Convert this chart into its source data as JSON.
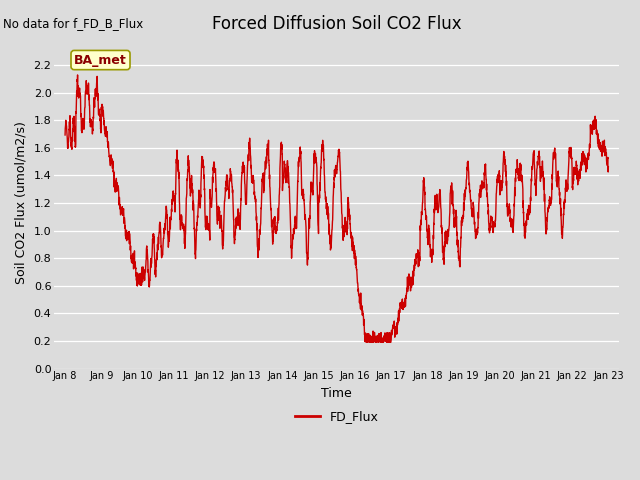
{
  "title": "Forced Diffusion Soil CO2 Flux",
  "no_data_label": "No data for f_FD_B_Flux",
  "xlabel": "Time",
  "ylabel": "Soil CO2 Flux (umol/m2/s)",
  "ylim": [
    0.0,
    2.4
  ],
  "yticks": [
    0.0,
    0.2,
    0.4,
    0.6,
    0.8,
    1.0,
    1.2,
    1.4,
    1.6,
    1.8,
    2.0,
    2.2
  ],
  "line_color": "#cc0000",
  "line_width": 1.0,
  "background_color": "#dcdcdc",
  "plot_bg_color": "#dcdcdc",
  "legend_label": "FD_Flux",
  "annotation_label": "BA_met",
  "xtick_labels": [
    "Jan 8",
    "Jan 9",
    "Jan 10",
    "Jan 11",
    "Jan 12",
    "Jan 13",
    "Jan 14",
    "Jan 15",
    "Jan 16",
    "Jan 17",
    "Jan 18",
    "Jan 19",
    "Jan 20",
    "Jan 21",
    "Jan 22",
    "Jan 23"
  ],
  "title_fontsize": 12,
  "axis_fontsize": 9,
  "tick_fontsize": 8,
  "legend_fontsize": 9
}
